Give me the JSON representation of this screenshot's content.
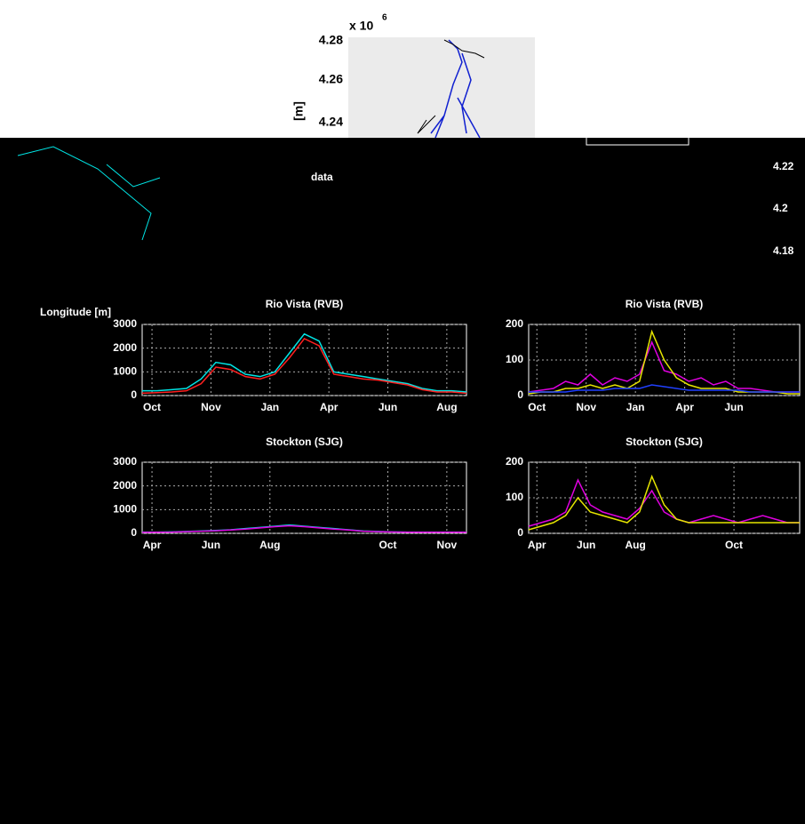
{
  "map": {
    "scale_base": "x 10",
    "scale_exponent": "6",
    "yticks": [
      "4.28",
      "4.26",
      "4.24"
    ],
    "ylabel": "[m]",
    "right_ticks": [
      "4.22",
      "4.2",
      "4.18"
    ],
    "legend_text": "data",
    "xlabel": "Longitude [m]"
  },
  "chart_data": [
    {
      "type": "line",
      "title": "Rio Vista (RVB)",
      "x": [
        0,
        15,
        30,
        45,
        60,
        75,
        90,
        105,
        120,
        135,
        150,
        165,
        180,
        195,
        210,
        225,
        240,
        255,
        270,
        285,
        300,
        315,
        330
      ],
      "xlim": [
        0,
        330
      ],
      "xticks": [
        {
          "value": 10,
          "label": "Oct"
        },
        {
          "value": 70,
          "label": "Nov"
        },
        {
          "value": 130,
          "label": "Jan"
        },
        {
          "value": 190,
          "label": "Apr"
        },
        {
          "value": 250,
          "label": "Jun"
        },
        {
          "value": 310,
          "label": "Aug"
        }
      ],
      "ylim": [
        0,
        3000
      ],
      "yticks": [
        0,
        1000,
        2000,
        3000
      ],
      "grid": true,
      "series": [
        {
          "name": "cyan",
          "color": "#00e5e5",
          "values": [
            200,
            200,
            250,
            300,
            700,
            1400,
            1300,
            900,
            800,
            1000,
            1800,
            2600,
            2300,
            1000,
            900,
            800,
            700,
            600,
            500,
            300,
            200,
            200,
            150
          ]
        },
        {
          "name": "red",
          "color": "#ff2020",
          "values": [
            100,
            120,
            150,
            200,
            500,
            1200,
            1100,
            800,
            700,
            900,
            1600,
            2400,
            2100,
            900,
            800,
            700,
            650,
            550,
            450,
            250,
            150,
            150,
            100
          ]
        }
      ]
    },
    {
      "type": "line",
      "title": "Rio Vista (RVB)",
      "x": [
        0,
        15,
        30,
        45,
        60,
        75,
        90,
        105,
        120,
        135,
        150,
        165,
        180,
        195,
        210,
        225,
        240,
        255,
        270,
        285,
        300,
        315,
        330
      ],
      "xlim": [
        0,
        330
      ],
      "xticks": [
        {
          "value": 10,
          "label": "Oct"
        },
        {
          "value": 70,
          "label": "Nov"
        },
        {
          "value": 130,
          "label": "Jan"
        },
        {
          "value": 190,
          "label": "Apr"
        },
        {
          "value": 250,
          "label": "Jun"
        }
      ],
      "ylim": [
        0,
        200
      ],
      "yticks": [
        0,
        100,
        200
      ],
      "grid": true,
      "series": [
        {
          "name": "magenta",
          "color": "#e000e0",
          "values": [
            10,
            15,
            20,
            40,
            30,
            60,
            30,
            50,
            40,
            60,
            150,
            70,
            60,
            40,
            50,
            30,
            40,
            20,
            20,
            15,
            10,
            10,
            10
          ]
        },
        {
          "name": "yellow",
          "color": "#e5e500",
          "values": [
            5,
            10,
            10,
            20,
            20,
            30,
            20,
            30,
            20,
            40,
            180,
            100,
            50,
            30,
            20,
            20,
            20,
            10,
            10,
            10,
            10,
            5,
            5
          ]
        },
        {
          "name": "blue",
          "color": "#2040ff",
          "values": [
            10,
            10,
            10,
            10,
            15,
            15,
            15,
            20,
            20,
            20,
            30,
            25,
            20,
            15,
            15,
            15,
            15,
            15,
            10,
            10,
            10,
            10,
            10
          ]
        }
      ]
    },
    {
      "type": "line",
      "title": "Stockton (SJG)",
      "x": [
        0,
        15,
        30,
        45,
        60,
        75,
        90,
        105,
        120,
        135,
        150,
        165,
        180,
        195,
        210,
        225,
        240,
        255,
        270,
        285,
        300,
        315,
        330
      ],
      "xlim": [
        0,
        330
      ],
      "xticks": [
        {
          "value": 10,
          "label": "Apr"
        },
        {
          "value": 70,
          "label": "Jun"
        },
        {
          "value": 130,
          "label": "Aug"
        },
        {
          "value": 250,
          "label": "Oct"
        },
        {
          "value": 310,
          "label": "Nov"
        }
      ],
      "ylim": [
        0,
        3000
      ],
      "yticks": [
        0,
        1000,
        2000,
        3000
      ],
      "grid": true,
      "series": [
        {
          "name": "cyan",
          "color": "#00e5e5",
          "values": [
            50,
            50,
            60,
            80,
            100,
            120,
            150,
            200,
            250,
            300,
            350,
            300,
            250,
            200,
            150,
            100,
            80,
            60,
            50,
            50,
            50,
            50,
            50
          ]
        },
        {
          "name": "magenta",
          "color": "#e000e0",
          "values": [
            40,
            45,
            50,
            70,
            90,
            110,
            140,
            180,
            230,
            280,
            320,
            280,
            230,
            180,
            140,
            90,
            70,
            55,
            45,
            45,
            45,
            45,
            45
          ]
        }
      ]
    },
    {
      "type": "line",
      "title": "Stockton (SJG)",
      "x": [
        0,
        15,
        30,
        45,
        60,
        75,
        90,
        105,
        120,
        135,
        150,
        165,
        180,
        195,
        210,
        225,
        240,
        255,
        270,
        285,
        300,
        315,
        330
      ],
      "xlim": [
        0,
        330
      ],
      "xticks": [
        {
          "value": 10,
          "label": "Apr"
        },
        {
          "value": 70,
          "label": "Jun"
        },
        {
          "value": 130,
          "label": "Aug"
        },
        {
          "value": 250,
          "label": "Oct"
        }
      ],
      "ylim": [
        0,
        200
      ],
      "yticks": [
        0,
        100,
        200
      ],
      "grid": true,
      "series": [
        {
          "name": "magenta",
          "color": "#e000e0",
          "values": [
            20,
            30,
            40,
            60,
            150,
            80,
            60,
            50,
            40,
            70,
            120,
            60,
            40,
            30,
            40,
            50,
            40,
            30,
            40,
            50,
            40,
            30,
            30
          ]
        },
        {
          "name": "yellow",
          "color": "#e5e500",
          "values": [
            10,
            20,
            30,
            50,
            100,
            60,
            50,
            40,
            30,
            60,
            160,
            80,
            40,
            30,
            30,
            30,
            30,
            30,
            30,
            30,
            30,
            30,
            30
          ]
        }
      ]
    }
  ]
}
